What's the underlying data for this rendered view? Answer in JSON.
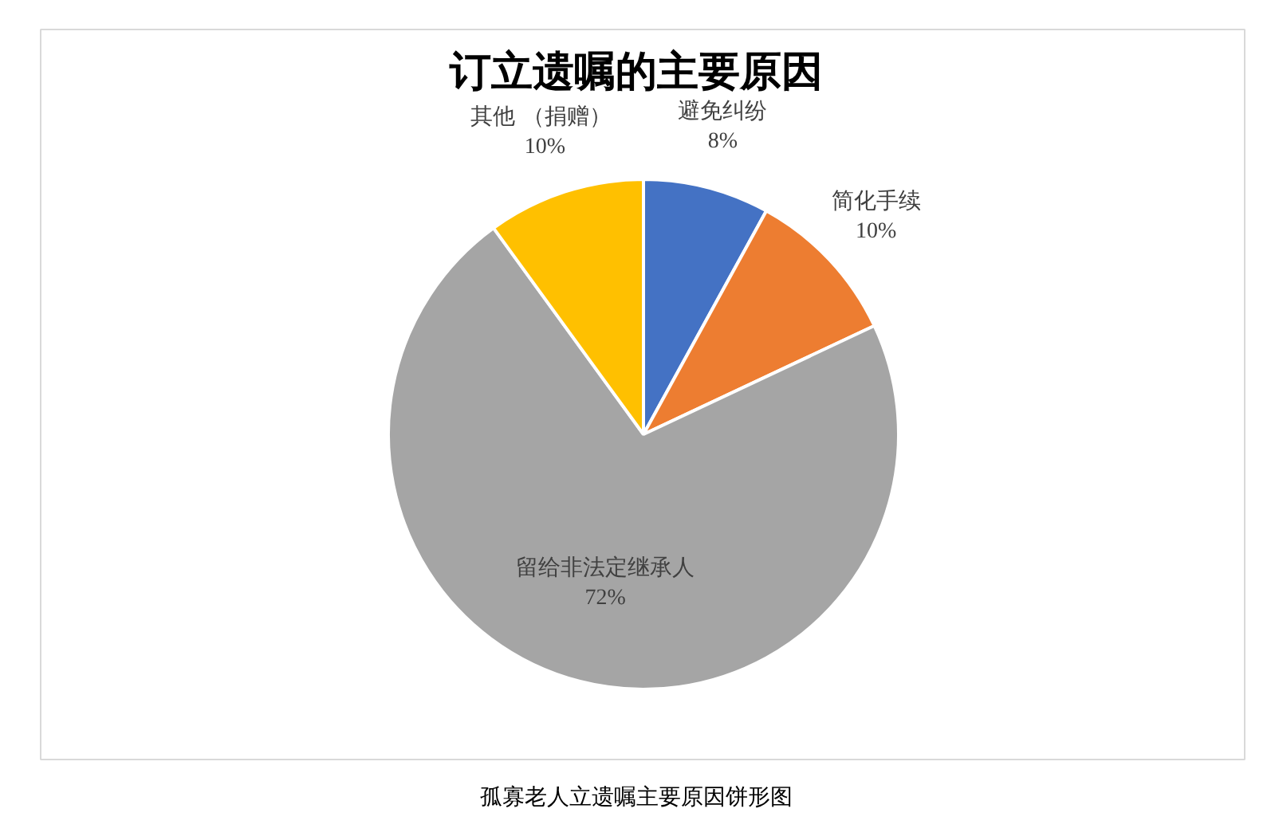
{
  "chart_data": {
    "type": "pie",
    "title": "订立遗嘱的主要原因",
    "categories": [
      "避免纠纷",
      "简化手续",
      "留给非法定继承人",
      "其他  （捐赠）"
    ],
    "values": [
      8,
      10,
      72,
      10
    ],
    "colors": [
      "#4472c4",
      "#ed7d31",
      "#a5a5a5",
      "#ffc000"
    ],
    "value_labels": [
      "8%",
      "10%",
      "72%",
      "10%"
    ],
    "annotations": [
      "孤寡老人立遗嘱主要原因饼形图"
    ]
  }
}
